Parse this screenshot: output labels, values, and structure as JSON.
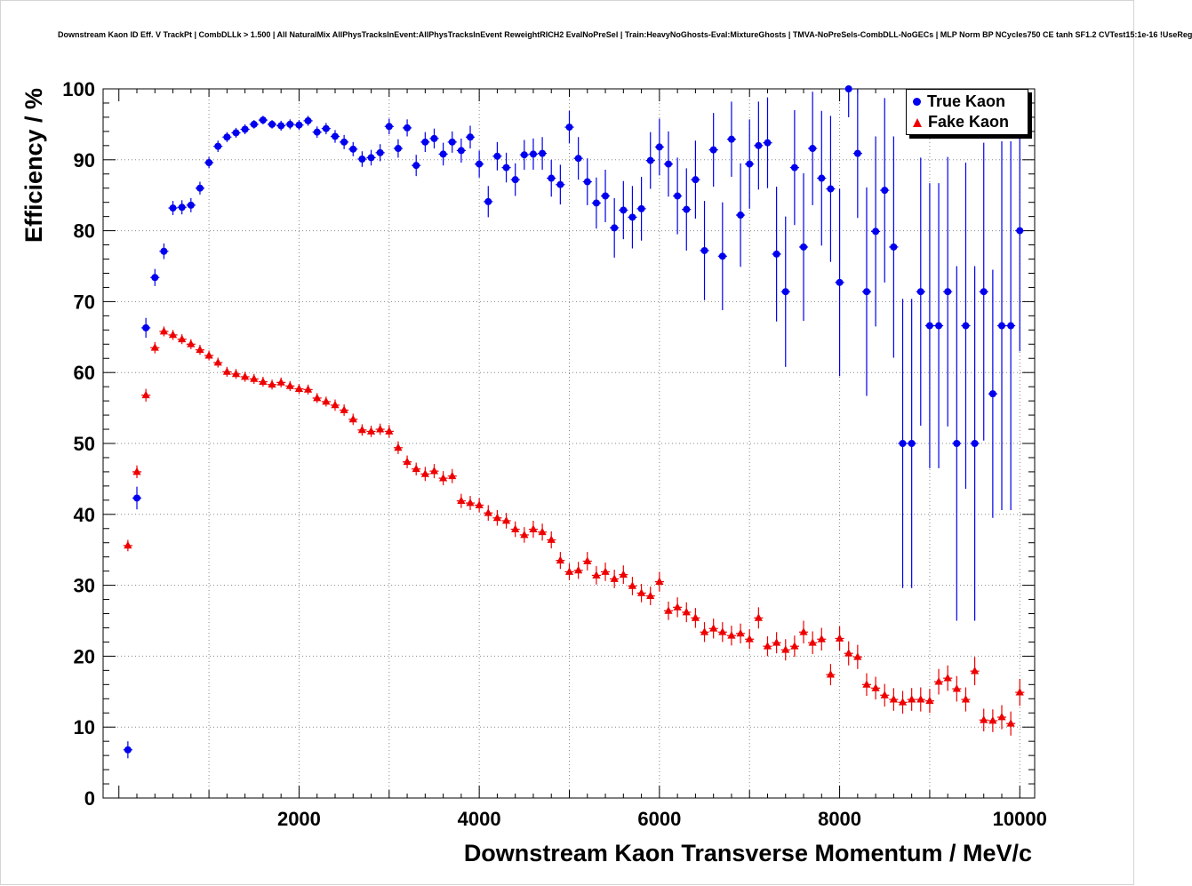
{
  "chart_data": {
    "type": "scatter",
    "title": "Downstream Kaon ID Eff. V TrackPt | CombDLLk > 1.500 | All NaturalMix AllPhysTracksInEvent:AllPhysTracksInEvent ReweightRICH2 EvalNoPreSel | Train:HeavyNoGhosts-Eval:MixtureGhosts | TMVA-NoPreSels-CombDLL-NoGECs | MLP Norm BP NCycles750 CE tanh SF1.2 CVTest15:1e-16 !UseReg",
    "xlabel": "Downstream Kaon Transverse Momentum / MeV/c",
    "ylabel": "Efficiency / %",
    "xlim": [
      -175,
      10165
    ],
    "ylim": [
      0,
      100
    ],
    "x_major_ticks": [
      2000,
      4000,
      6000,
      8000,
      10000
    ],
    "y_ticks": [
      0,
      10,
      20,
      30,
      40,
      50,
      60,
      70,
      80,
      90,
      100
    ],
    "x_grid": [
      1000,
      2000,
      3000,
      4000,
      5000,
      6000,
      7000,
      8000,
      9000,
      10000
    ],
    "y_grid": [
      10,
      20,
      30,
      40,
      50,
      60,
      70,
      80,
      90
    ],
    "axes": {
      "x": {
        "from": 0,
        "to": 10000,
        "minor_step": 200,
        "medium_step": 1000,
        "major_step": 2000
      },
      "y": {
        "minor_step": 2,
        "major_step": 10
      }
    },
    "grid_style": "dotted",
    "grid_color": "#888888",
    "frame_color": "#000000",
    "legend": {
      "position": "top-right",
      "entries": [
        {
          "label": "True Kaon",
          "marker": "circle",
          "color": "#0000ee"
        },
        {
          "label": "Fake Kaon",
          "marker": "triangle",
          "color": "#ee0000"
        }
      ]
    },
    "x": [
      100,
      200,
      300,
      400,
      500,
      600,
      700,
      800,
      900,
      1000,
      1100,
      1200,
      1300,
      1400,
      1500,
      1600,
      1700,
      1800,
      1900,
      2000,
      2100,
      2200,
      2300,
      2400,
      2500,
      2600,
      2700,
      2800,
      2900,
      3000,
      3100,
      3200,
      3300,
      3400,
      3500,
      3600,
      3700,
      3800,
      3900,
      4000,
      4100,
      4200,
      4300,
      4400,
      4500,
      4600,
      4700,
      4800,
      4900,
      5000,
      5100,
      5200,
      5300,
      5400,
      5500,
      5600,
      5700,
      5800,
      5900,
      6000,
      6100,
      6200,
      6300,
      6400,
      6500,
      6600,
      6700,
      6800,
      6900,
      7000,
      7100,
      7200,
      7300,
      7400,
      7500,
      7600,
      7700,
      7800,
      7900,
      8000,
      8100,
      8200,
      8300,
      8400,
      8500,
      8600,
      8700,
      8800,
      8900,
      9000,
      9100,
      9200,
      9300,
      9400,
      9500,
      9600,
      9700,
      9800,
      9900,
      10000
    ],
    "xerr": 50,
    "series": [
      {
        "name": "True Kaon",
        "marker": "circle",
        "color": "#0000ee",
        "y": [
          6.8,
          42.3,
          66.3,
          73.4,
          77.1,
          83.2,
          83.3,
          83.6,
          86.0,
          89.6,
          91.9,
          93.2,
          93.8,
          94.3,
          95.0,
          95.6,
          95.0,
          94.8,
          95.0,
          94.9,
          95.5,
          93.9,
          94.4,
          93.3,
          92.5,
          91.5,
          90.1,
          90.3,
          91.0,
          94.7,
          91.6,
          94.5,
          89.2,
          92.5,
          93.0,
          90.8,
          92.5,
          91.3,
          93.2,
          89.4,
          84.1,
          90.5,
          88.9,
          87.2,
          90.7,
          90.8,
          90.9,
          87.4,
          86.5,
          94.6,
          90.2,
          86.9,
          83.9,
          84.9,
          80.4,
          82.9,
          81.9,
          83.1,
          89.9,
          91.8,
          89.4,
          84.9,
          83.0,
          87.2,
          77.2,
          91.4,
          76.4,
          92.9,
          82.2,
          89.4,
          92.0,
          92.4,
          76.7,
          71.4,
          88.9,
          77.7,
          91.6,
          87.4,
          85.9,
          72.7,
          100.0,
          90.9,
          71.4,
          79.9,
          85.7,
          77.7,
          50.0,
          50.0,
          71.4,
          66.6,
          66.6,
          71.4,
          50.0,
          66.6,
          50.0,
          71.4,
          57.0,
          66.6,
          66.6,
          80.0
        ],
        "yerr": [
          1.2,
          1.6,
          1.4,
          1.2,
          1.1,
          1.0,
          1.0,
          1.0,
          0.9,
          0.8,
          0.8,
          0.7,
          0.7,
          0.7,
          0.6,
          0.6,
          0.6,
          0.7,
          0.7,
          0.7,
          0.7,
          0.8,
          0.8,
          0.9,
          1.0,
          1.0,
          1.1,
          1.1,
          1.2,
          1.1,
          1.3,
          1.2,
          1.5,
          1.4,
          1.4,
          1.6,
          1.5,
          1.7,
          1.6,
          1.9,
          2.2,
          2.0,
          2.1,
          2.3,
          2.1,
          2.2,
          2.3,
          2.6,
          2.8,
          2.3,
          3.0,
          3.3,
          3.6,
          3.7,
          4.2,
          4.1,
          4.4,
          4.5,
          4.0,
          4.0,
          4.6,
          5.4,
          5.8,
          5.5,
          7.0,
          5.2,
          7.6,
          5.3,
          7.3,
          6.3,
          6.2,
          6.4,
          9.5,
          10.6,
          8.1,
          10.4,
          8.0,
          9.5,
          10.3,
          13.2,
          4.0,
          9.1,
          14.7,
          13.4,
          13.0,
          15.6,
          20.4,
          20.4,
          18.9,
          20.1,
          20.1,
          19.0,
          25.0,
          23.0,
          25.0,
          21.0,
          17.5,
          26.0,
          26.0,
          17.0
        ]
      },
      {
        "name": "Fake Kaon",
        "marker": "triangle",
        "color": "#ee0000",
        "y": [
          35.6,
          46.0,
          56.8,
          63.5,
          65.8,
          65.3,
          64.7,
          64.0,
          63.2,
          62.4,
          61.4,
          60.1,
          59.8,
          59.4,
          59.1,
          58.7,
          58.3,
          58.6,
          58.1,
          57.7,
          57.6,
          56.4,
          55.9,
          55.4,
          54.7,
          53.4,
          51.9,
          51.7,
          52.0,
          51.7,
          49.4,
          47.4,
          46.4,
          45.7,
          46.1,
          45.1,
          45.4,
          41.9,
          41.6,
          41.3,
          40.2,
          39.5,
          39.1,
          37.9,
          37.1,
          37.9,
          37.5,
          36.4,
          33.5,
          31.9,
          32.1,
          33.4,
          31.4,
          31.9,
          30.9,
          31.5,
          29.9,
          28.9,
          28.5,
          30.5,
          26.4,
          26.9,
          26.2,
          25.4,
          23.4,
          23.9,
          23.4,
          22.9,
          23.2,
          22.4,
          25.4,
          21.4,
          21.9,
          20.9,
          21.4,
          23.4,
          21.9,
          22.4,
          17.4,
          22.5,
          20.4,
          19.9,
          16.0,
          15.5,
          14.5,
          13.9,
          13.5,
          13.9,
          13.9,
          13.7,
          16.4,
          16.9,
          15.4,
          13.9,
          17.9,
          11.0,
          10.9,
          11.4,
          10.5,
          14.9
        ],
        "yerr": [
          0.8,
          0.9,
          0.9,
          0.8,
          0.7,
          0.7,
          0.7,
          0.7,
          0.7,
          0.7,
          0.7,
          0.7,
          0.7,
          0.7,
          0.7,
          0.7,
          0.7,
          0.7,
          0.7,
          0.7,
          0.7,
          0.7,
          0.7,
          0.8,
          0.8,
          0.8,
          0.8,
          0.8,
          0.8,
          0.9,
          0.9,
          0.9,
          0.9,
          1.0,
          1.0,
          1.0,
          1.0,
          1.0,
          1.0,
          1.0,
          1.1,
          1.1,
          1.1,
          1.1,
          1.1,
          1.2,
          1.2,
          1.2,
          1.2,
          1.2,
          1.2,
          1.3,
          1.3,
          1.3,
          1.3,
          1.3,
          1.3,
          1.3,
          1.3,
          1.4,
          1.3,
          1.4,
          1.4,
          1.4,
          1.4,
          1.4,
          1.4,
          1.4,
          1.4,
          1.4,
          1.5,
          1.4,
          1.5,
          1.5,
          1.5,
          1.6,
          1.6,
          1.6,
          1.5,
          1.7,
          1.7,
          1.7,
          1.6,
          1.6,
          1.6,
          1.6,
          1.6,
          1.6,
          1.7,
          1.7,
          1.8,
          1.8,
          1.8,
          1.7,
          2.0,
          1.6,
          1.6,
          1.7,
          1.7,
          1.9
        ]
      }
    ]
  }
}
